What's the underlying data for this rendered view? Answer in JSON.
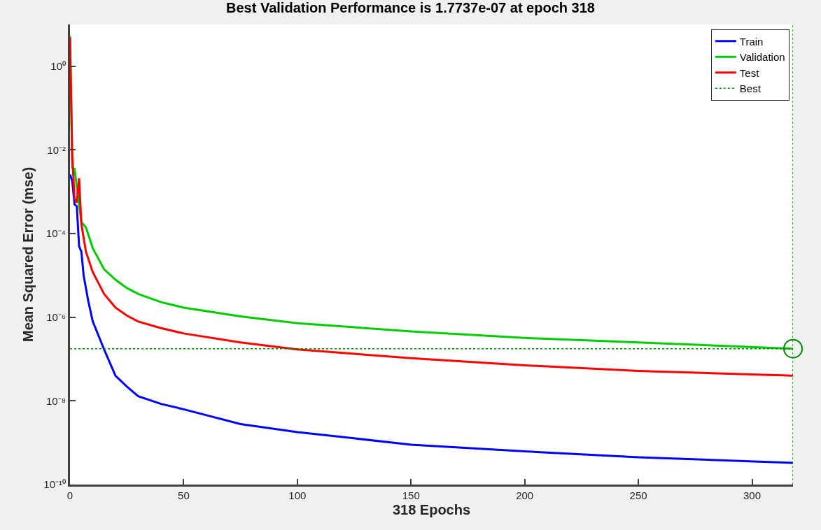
{
  "chart_data": {
    "type": "line",
    "title": "Best Validation Performance is 1.7737e-07 at epoch 318",
    "xlabel": "318 Epochs",
    "ylabel": "Mean Squared Error (mse)",
    "log": "y",
    "legend": "top right",
    "line_style": "solid",
    "xlim": [
      0,
      318
    ],
    "xticks": [
      0,
      50,
      100,
      150,
      200,
      250,
      300
    ],
    "ylim": [
      1e-10,
      10
    ],
    "yticks": [
      {
        "value": 1e-10,
        "label": "10⁻¹⁰"
      },
      {
        "value": 1e-08,
        "label": "10⁻⁸"
      },
      {
        "value": 1e-06,
        "label": "10⁻⁶"
      },
      {
        "value": 0.0001,
        "label": "10⁻⁴"
      },
      {
        "value": 0.01,
        "label": "10⁻²"
      },
      {
        "value": 1,
        "label": "10⁰"
      }
    ],
    "series": [
      {
        "name": "Train",
        "color": "#0000ff",
        "x": [
          0,
          1,
          2,
          3,
          4,
          5,
          6,
          8,
          10,
          15,
          20,
          25,
          30,
          40,
          50,
          75,
          100,
          150,
          200,
          250,
          318
        ],
        "values": [
          0.0026,
          0.0018,
          0.0005,
          0.00045,
          5e-05,
          3.7e-05,
          1e-05,
          2.5e-06,
          8e-07,
          1.7e-07,
          4e-08,
          2.2e-08,
          1.3e-08,
          8.5e-09,
          6.3e-09,
          2.8e-09,
          1.8e-09,
          9e-10,
          6.2e-10,
          4.5e-10,
          3.3e-10
        ]
      },
      {
        "name": "Validation",
        "color": "#00cc00",
        "x": [
          0,
          1,
          2,
          5,
          7,
          10,
          15,
          20,
          25,
          30,
          40,
          50,
          75,
          100,
          150,
          200,
          250,
          318
        ],
        "values": [
          5.3,
          0.0038,
          0.0035,
          0.00019,
          0.00014,
          4.5e-05,
          1.4e-05,
          7.9e-06,
          5e-06,
          3.6e-06,
          2.3e-06,
          1.7e-06,
          1.05e-06,
          7.2e-07,
          4.6e-07,
          3.2e-07,
          2.5e-07,
          1.7737e-07
        ]
      },
      {
        "name": "Test",
        "color": "#ff0000",
        "x": [
          0,
          1,
          2,
          3,
          4,
          5,
          7,
          10,
          15,
          20,
          25,
          30,
          40,
          50,
          75,
          100,
          150,
          200,
          250,
          318
        ],
        "values": [
          4.9,
          0.0069,
          0.00068,
          0.00055,
          0.0021,
          0.00017,
          3.7e-05,
          1.2e-05,
          3.6e-06,
          1.7e-06,
          1.1e-06,
          7.9e-07,
          5.5e-07,
          4.1e-07,
          2.5e-07,
          1.7e-07,
          1.05e-07,
          7.1e-08,
          5.2e-08,
          4e-08
        ]
      },
      {
        "name": "Best",
        "color": "#008800",
        "line_style": "dotted",
        "x": [
          0,
          318
        ],
        "values": [
          1.7737e-07,
          1.7737e-07
        ]
      },
      {
        "type": "scatter",
        "marker": "circle",
        "color": "#008800",
        "x": [
          318
        ],
        "values": [
          1.7737e-07
        ]
      }
    ],
    "ref_lines": [
      {
        "axis": "x",
        "value": 318,
        "color": "#008800",
        "line_style": "dotted"
      }
    ]
  }
}
